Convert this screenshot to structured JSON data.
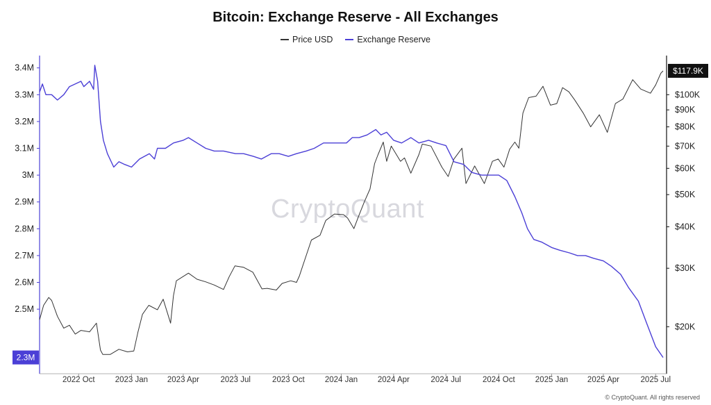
{
  "title": "Bitcoin: Exchange Reserve - All Exchanges",
  "legend": [
    {
      "label": "Price USD",
      "color": "#333333"
    },
    {
      "label": "Exchange Reserve",
      "color": "#4b3fd6"
    }
  ],
  "watermark": "CryptoQuant",
  "copyright": "© CryptoQuant. All rights reserved",
  "chart_data": {
    "type": "line",
    "title": "Bitcoin: Exchange Reserve - All Exchanges",
    "x_range": [
      "2022-07-25",
      "2025-07-20"
    ],
    "x_tick_labels": [
      {
        "date": "2022-10-01",
        "label": "2022 Oct"
      },
      {
        "date": "2023-01-01",
        "label": "2023 Jan"
      },
      {
        "date": "2023-04-01",
        "label": "2023 Apr"
      },
      {
        "date": "2023-07-01",
        "label": "2023 Jul"
      },
      {
        "date": "2023-10-01",
        "label": "2023 Oct"
      },
      {
        "date": "2024-01-01",
        "label": "2024 Jan"
      },
      {
        "date": "2024-04-01",
        "label": "2024 Apr"
      },
      {
        "date": "2024-07-01",
        "label": "2024 Jul"
      },
      {
        "date": "2024-10-01",
        "label": "2024 Oct"
      },
      {
        "date": "2025-01-01",
        "label": "2025 Jan"
      },
      {
        "date": "2025-04-01",
        "label": "2025 Apr"
      },
      {
        "date": "2025-07-01",
        "label": "2025 Jul"
      }
    ],
    "y_left": {
      "range": [
        2.28,
        3.42
      ],
      "ticks": [
        {
          "value": 2.5,
          "label": "2.5M"
        },
        {
          "value": 2.6,
          "label": "2.6M"
        },
        {
          "value": 2.7,
          "label": "2.7M"
        },
        {
          "value": 2.8,
          "label": "2.8M"
        },
        {
          "value": 2.9,
          "label": "2.9M"
        },
        {
          "value": 3.0,
          "label": "3M"
        },
        {
          "value": 3.1,
          "label": "3.1M"
        },
        {
          "value": 3.2,
          "label": "3.2M"
        },
        {
          "value": 3.3,
          "label": "3.3M"
        },
        {
          "value": 3.4,
          "label": "3.4M"
        }
      ],
      "current_label": "2.3M"
    },
    "y_right": {
      "scale": "log",
      "range": [
        15000,
        125000
      ],
      "ticks": [
        {
          "value": 20000,
          "label": "$20K"
        },
        {
          "value": 30000,
          "label": "$30K"
        },
        {
          "value": 40000,
          "label": "$40K"
        },
        {
          "value": 50000,
          "label": "$50K"
        },
        {
          "value": 60000,
          "label": "$60K"
        },
        {
          "value": 70000,
          "label": "$70K"
        },
        {
          "value": 80000,
          "label": "$80K"
        },
        {
          "value": 90000,
          "label": "$90K"
        },
        {
          "value": 100000,
          "label": "$100K"
        }
      ],
      "current_label": "$117.9K"
    },
    "series": [
      {
        "name": "Price USD",
        "axis": "right",
        "color": "#333333",
        "x": [
          "2022-07-25",
          "2022-08-01",
          "2022-08-10",
          "2022-08-15",
          "2022-08-25",
          "2022-09-05",
          "2022-09-15",
          "2022-09-25",
          "2022-10-05",
          "2022-10-20",
          "2022-11-01",
          "2022-11-08",
          "2022-11-12",
          "2022-11-25",
          "2022-12-10",
          "2022-12-25",
          "2023-01-05",
          "2023-01-12",
          "2023-01-20",
          "2023-01-31",
          "2023-02-15",
          "2023-02-25",
          "2023-03-10",
          "2023-03-15",
          "2023-03-20",
          "2023-04-10",
          "2023-04-25",
          "2023-05-10",
          "2023-05-25",
          "2023-06-10",
          "2023-06-20",
          "2023-06-30",
          "2023-07-15",
          "2023-07-31",
          "2023-08-16",
          "2023-08-25",
          "2023-09-10",
          "2023-09-20",
          "2023-10-05",
          "2023-10-15",
          "2023-10-20",
          "2023-10-25",
          "2023-11-10",
          "2023-11-25",
          "2023-12-05",
          "2023-12-20",
          "2024-01-05",
          "2024-01-12",
          "2024-01-23",
          "2024-01-31",
          "2024-02-10",
          "2024-02-20",
          "2024-02-28",
          "2024-03-05",
          "2024-03-14",
          "2024-03-20",
          "2024-03-28",
          "2024-04-13",
          "2024-04-20",
          "2024-05-01",
          "2024-05-15",
          "2024-05-21",
          "2024-06-05",
          "2024-06-24",
          "2024-07-05",
          "2024-07-15",
          "2024-07-29",
          "2024-08-05",
          "2024-08-20",
          "2024-09-06",
          "2024-09-20",
          "2024-09-30",
          "2024-10-10",
          "2024-10-20",
          "2024-10-29",
          "2024-11-05",
          "2024-11-12",
          "2024-11-22",
          "2024-12-05",
          "2024-12-17",
          "2024-12-30",
          "2025-01-10",
          "2025-01-20",
          "2025-01-31",
          "2025-02-10",
          "2025-02-25",
          "2025-03-10",
          "2025-03-25",
          "2025-04-08",
          "2025-04-22",
          "2025-05-05",
          "2025-05-22",
          "2025-06-05",
          "2025-06-22",
          "2025-07-01",
          "2025-07-10",
          "2025-07-14"
        ],
        "values": [
          21000,
          23200,
          24500,
          24000,
          21500,
          19800,
          20200,
          19000,
          19500,
          19300,
          20500,
          17000,
          16500,
          16500,
          17100,
          16800,
          16900,
          19200,
          21800,
          23200,
          22500,
          24200,
          20500,
          24800,
          27500,
          29000,
          27800,
          27300,
          26700,
          25900,
          28300,
          30500,
          30200,
          29200,
          26000,
          26100,
          25800,
          27000,
          27500,
          27200,
          28400,
          30200,
          36500,
          37700,
          41800,
          43700,
          43500,
          42500,
          39500,
          43000,
          47500,
          52000,
          62000,
          66000,
          72000,
          63000,
          70000,
          63000,
          64500,
          58000,
          66000,
          71000,
          70000,
          60500,
          56700,
          64000,
          69000,
          54000,
          61000,
          54000,
          63000,
          64000,
          60500,
          68500,
          72000,
          69000,
          88000,
          98000,
          99000,
          106000,
          93000,
          94000,
          105000,
          102000,
          96500,
          88000,
          80000,
          87000,
          77000,
          94000,
          97000,
          111000,
          104000,
          101000,
          107000,
          116000,
          118000
        ]
      },
      {
        "name": "Exchange Reserve",
        "axis": "left",
        "color": "#4b3fd6",
        "x": [
          "2022-07-25",
          "2022-07-30",
          "2022-08-05",
          "2022-08-15",
          "2022-08-25",
          "2022-09-05",
          "2022-09-15",
          "2022-09-25",
          "2022-10-05",
          "2022-10-10",
          "2022-10-20",
          "2022-10-27",
          "2022-10-29",
          "2022-11-03",
          "2022-11-08",
          "2022-11-13",
          "2022-11-20",
          "2022-12-01",
          "2022-12-10",
          "2022-12-20",
          "2023-01-01",
          "2023-01-15",
          "2023-02-01",
          "2023-02-10",
          "2023-02-15",
          "2023-03-01",
          "2023-03-15",
          "2023-04-01",
          "2023-04-10",
          "2023-04-25",
          "2023-05-10",
          "2023-05-25",
          "2023-06-10",
          "2023-07-01",
          "2023-07-15",
          "2023-08-01",
          "2023-08-15",
          "2023-09-01",
          "2023-09-15",
          "2023-10-01",
          "2023-10-15",
          "2023-11-01",
          "2023-11-15",
          "2023-12-01",
          "2023-12-15",
          "2024-01-01",
          "2024-01-10",
          "2024-01-20",
          "2024-02-01",
          "2024-02-15",
          "2024-03-01",
          "2024-03-10",
          "2024-03-20",
          "2024-04-01",
          "2024-04-15",
          "2024-05-01",
          "2024-05-15",
          "2024-06-01",
          "2024-06-15",
          "2024-07-01",
          "2024-07-15",
          "2024-08-01",
          "2024-08-15",
          "2024-09-01",
          "2024-09-15",
          "2024-10-01",
          "2024-10-15",
          "2024-10-29",
          "2024-11-10",
          "2024-11-20",
          "2024-12-01",
          "2024-12-15",
          "2025-01-01",
          "2025-01-15",
          "2025-02-01",
          "2025-02-15",
          "2025-03-01",
          "2025-03-15",
          "2025-04-01",
          "2025-04-15",
          "2025-05-01",
          "2025-05-15",
          "2025-06-01",
          "2025-06-15",
          "2025-07-01",
          "2025-07-14"
        ],
        "values": [
          3.31,
          3.34,
          3.3,
          3.3,
          3.28,
          3.3,
          3.33,
          3.34,
          3.35,
          3.33,
          3.35,
          3.32,
          3.41,
          3.35,
          3.2,
          3.13,
          3.08,
          3.03,
          3.05,
          3.04,
          3.03,
          3.06,
          3.08,
          3.06,
          3.1,
          3.1,
          3.12,
          3.13,
          3.14,
          3.12,
          3.1,
          3.09,
          3.09,
          3.08,
          3.08,
          3.07,
          3.06,
          3.08,
          3.08,
          3.07,
          3.08,
          3.09,
          3.1,
          3.12,
          3.12,
          3.12,
          3.12,
          3.14,
          3.14,
          3.15,
          3.17,
          3.15,
          3.16,
          3.13,
          3.12,
          3.14,
          3.12,
          3.13,
          3.12,
          3.11,
          3.05,
          3.04,
          3.01,
          3.0,
          3.0,
          3.0,
          2.98,
          2.92,
          2.86,
          2.8,
          2.76,
          2.75,
          2.73,
          2.72,
          2.71,
          2.7,
          2.7,
          2.69,
          2.68,
          2.66,
          2.63,
          2.58,
          2.53,
          2.45,
          2.36,
          2.32
        ]
      }
    ],
    "grid": false
  }
}
